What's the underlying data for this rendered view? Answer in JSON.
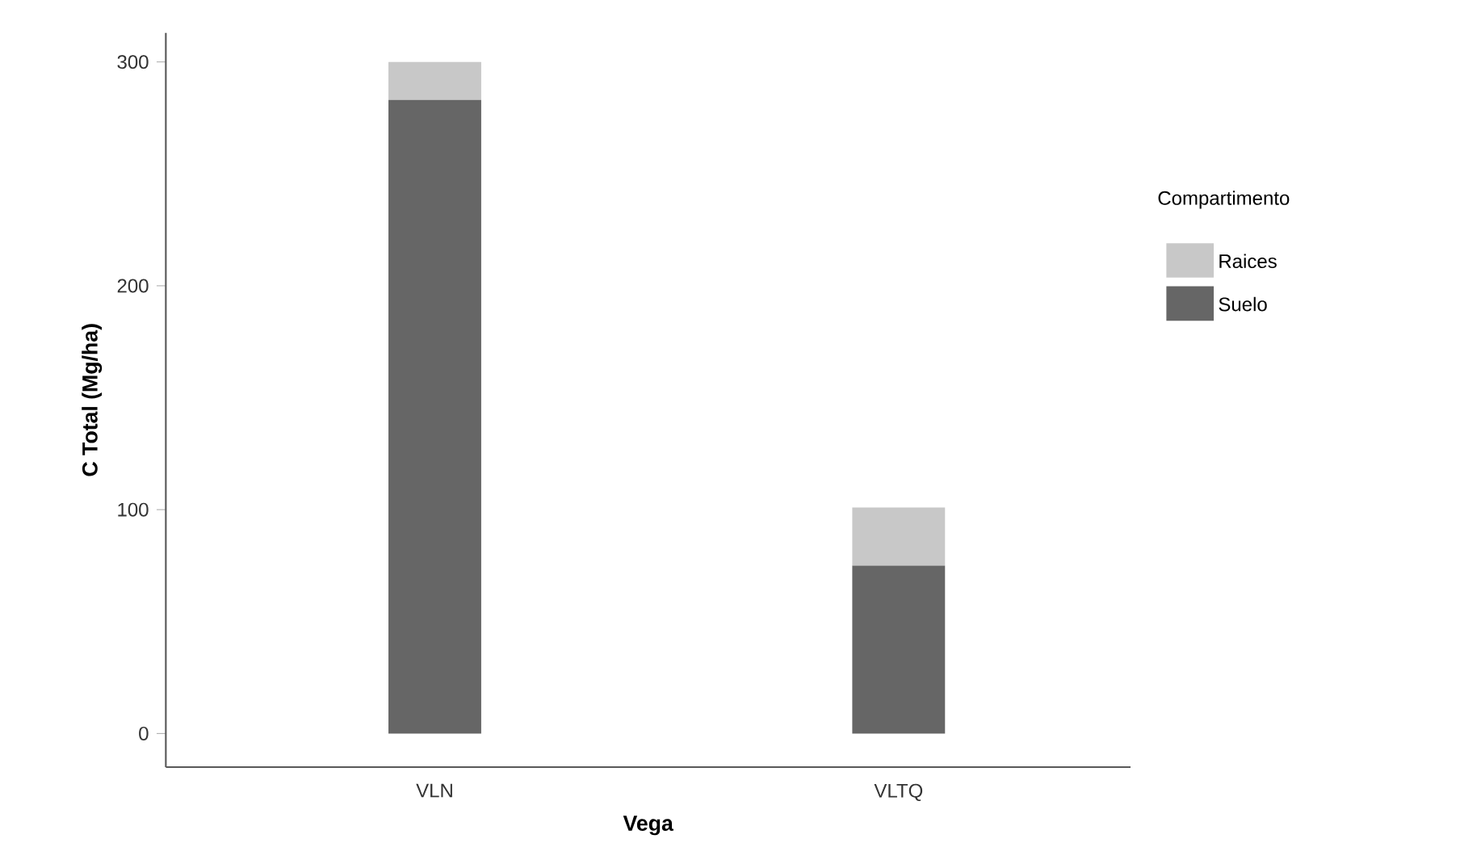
{
  "chart_data": {
    "type": "bar",
    "stacked": true,
    "xlabel": "Vega",
    "ylabel": "C Total (Mg/ha)",
    "legend_title": "Compartimento",
    "legend": "right",
    "categories": [
      "VLN",
      "VLTQ"
    ],
    "series": [
      {
        "name": "Suelo",
        "color": "#666666",
        "values": [
          283,
          75
        ]
      },
      {
        "name": "Raices",
        "color": "#c8c8c8",
        "values": [
          17,
          26
        ]
      }
    ],
    "ylim": [
      -15,
      313
    ],
    "yticks": [
      0,
      100,
      200,
      300
    ],
    "grid": false
  }
}
